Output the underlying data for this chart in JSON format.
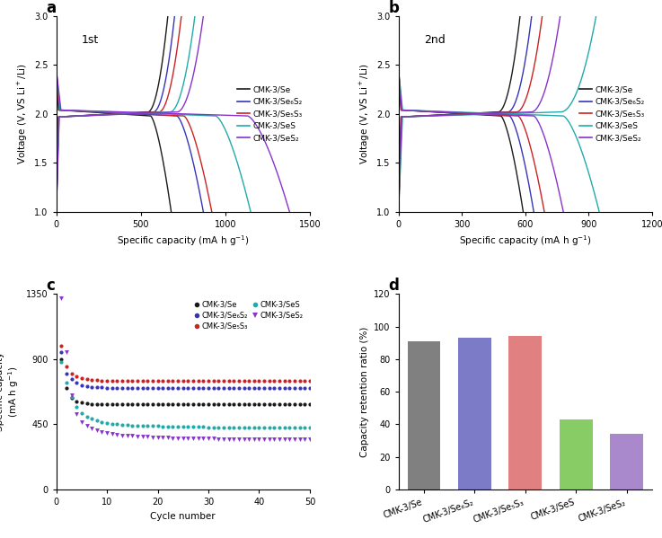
{
  "colors": {
    "CMK-3/Se": "#1a1a1a",
    "CMK-3/Se6S2": "#3535bb",
    "CMK-3/Se5S3": "#cc2222",
    "CMK-3/SeS": "#22aaaa",
    "CMK-3/SeS2": "#8833cc"
  },
  "legend_labels": {
    "CMK-3/Se": "CMK-3/Se",
    "CMK-3/Se6S2": "CMK-3/Se₆S₂",
    "CMK-3/Se5S3": "CMK-3/Se₅S₃",
    "CMK-3/SeS": "CMK-3/SeS",
    "CMK-3/SeS2": "CMK-3/SeS₂"
  },
  "panel_a": {
    "discharge": {
      "CMK-3/Se": 680,
      "CMK-3/Se6S2": 870,
      "CMK-3/Se5S3": 920,
      "CMK-3/SeS": 1150,
      "CMK-3/SeS2": 1380
    },
    "charge": {
      "CMK-3/Se": 660,
      "CMK-3/Se6S2": 700,
      "CMK-3/Se5S3": 740,
      "CMK-3/SeS": 820,
      "CMK-3/SeS2": 870
    }
  },
  "panel_b": {
    "discharge": {
      "CMK-3/Se": 590,
      "CMK-3/Se6S2": 640,
      "CMK-3/Se5S3": 690,
      "CMK-3/SeS": 950,
      "CMK-3/SeS2": 780
    },
    "charge": {
      "CMK-3/Se": 575,
      "CMK-3/Se6S2": 630,
      "CMK-3/Se5S3": 680,
      "CMK-3/SeS": 935,
      "CMK-3/SeS2": 765
    }
  },
  "panel_c": {
    "Se_data": [
      900,
      700,
      630,
      610,
      600,
      595,
      592,
      590,
      590,
      590,
      590,
      590,
      590,
      590,
      590,
      590,
      590,
      590,
      590,
      590,
      590,
      590,
      590,
      590,
      590,
      590,
      590,
      590,
      590,
      590,
      590,
      590,
      590,
      590,
      590,
      590,
      590,
      590,
      590,
      590,
      590,
      590,
      590,
      590,
      590,
      590,
      590,
      590,
      590,
      590
    ],
    "Se6S2_data": [
      950,
      800,
      760,
      740,
      720,
      715,
      710,
      708,
      705,
      703,
      701,
      700,
      700,
      700,
      700,
      700,
      700,
      700,
      700,
      700,
      700,
      700,
      700,
      700,
      700,
      700,
      700,
      700,
      700,
      700,
      700,
      700,
      700,
      700,
      700,
      700,
      700,
      700,
      700,
      700,
      700,
      700,
      700,
      700,
      700,
      700,
      700,
      700,
      700,
      700
    ],
    "Se5S3_data": [
      990,
      850,
      800,
      780,
      770,
      762,
      758,
      755,
      752,
      750,
      750,
      750,
      750,
      750,
      750,
      750,
      750,
      750,
      750,
      750,
      750,
      750,
      750,
      750,
      750,
      750,
      750,
      750,
      750,
      750,
      750,
      750,
      750,
      750,
      750,
      750,
      750,
      750,
      750,
      750,
      750,
      750,
      750,
      750,
      750,
      750,
      750,
      750,
      750,
      750
    ],
    "SeS_data": [
      880,
      740,
      640,
      570,
      530,
      505,
      490,
      475,
      465,
      458,
      453,
      450,
      447,
      445,
      443,
      442,
      441,
      440,
      439,
      438,
      437,
      436,
      435,
      434,
      434,
      433,
      433,
      432,
      432,
      431,
      431,
      431,
      430,
      430,
      430,
      430,
      430,
      430,
      430,
      430,
      430,
      430,
      430,
      430,
      430,
      430,
      430,
      430,
      430,
      430
    ],
    "SeS2_data": [
      1320,
      950,
      650,
      520,
      465,
      440,
      420,
      410,
      400,
      390,
      385,
      380,
      375,
      372,
      370,
      368,
      366,
      364,
      362,
      360,
      358,
      357,
      356,
      355,
      354,
      353,
      353,
      352,
      352,
      351,
      351,
      350,
      350,
      350,
      350,
      350,
      350,
      350,
      350,
      350,
      350,
      350,
      350,
      350,
      350,
      350,
      350,
      350,
      350,
      350
    ]
  },
  "panel_d": {
    "categories": [
      "CMK-3/Se",
      "CMK-3/Se₆S₂",
      "CMK-3/Se₅S₃",
      "CMK-3/SeS",
      "CMK-3/SeS₂"
    ],
    "values": [
      91,
      93,
      94,
      43,
      34
    ],
    "bar_colors": [
      "#808080",
      "#7b7bc8",
      "#e08080",
      "#88cc66",
      "#aa88cc"
    ]
  }
}
